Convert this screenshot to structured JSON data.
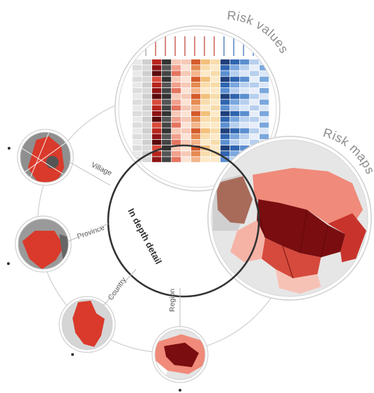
{
  "diagram": {
    "title_risk_values": "Risk values",
    "title_risk_maps": "Risk maps",
    "center_label": "In depth detail",
    "levels": [
      {
        "label": "Village"
      },
      {
        "label": "Province"
      },
      {
        "label": "Country"
      },
      {
        "label": "Region"
      }
    ]
  },
  "colors": {
    "accent": "#d93a2b",
    "dark_red": "#6b0a0a",
    "mid_red": "#b8251d",
    "light_red": "#f1a08c",
    "grey_fill": "#9a9a9a",
    "outline": "#cfcfcf",
    "ring": "#333333",
    "blue": "#2f65b0"
  }
}
